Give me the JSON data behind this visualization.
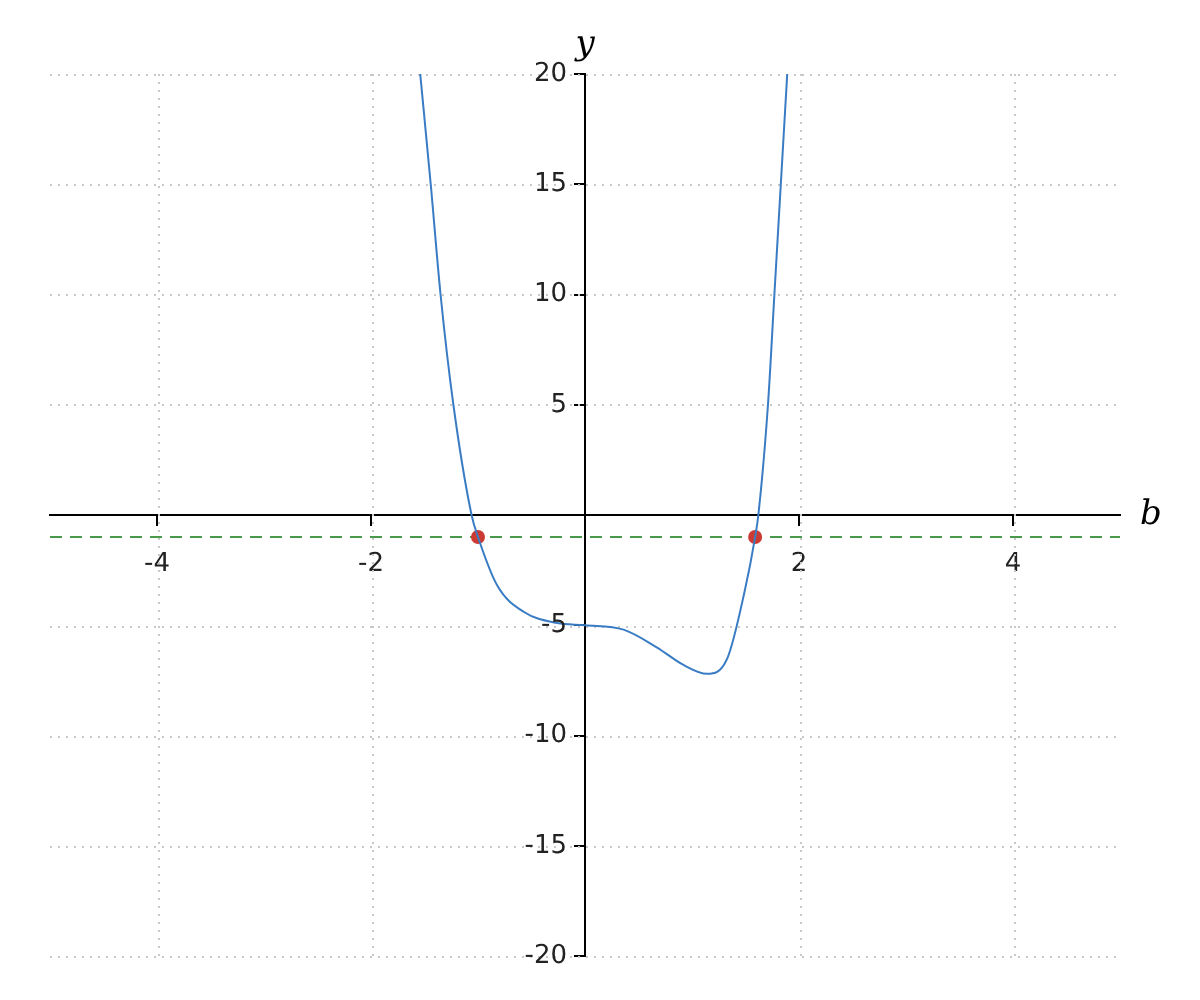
{
  "chart_data": {
    "type": "line",
    "xlabel": "b",
    "ylabel": "y",
    "xlim": [
      -5,
      5
    ],
    "ylim": [
      -20,
      20
    ],
    "xticks": [
      -4,
      -2,
      2,
      4
    ],
    "yticks": [
      -20,
      -15,
      -10,
      -5,
      5,
      10,
      15,
      20
    ],
    "grid": true,
    "legend": false,
    "series": [
      {
        "type": "line",
        "color": "#3a7cc4",
        "marker": "none",
        "x": [
          -1.54,
          -1.44,
          -1.35,
          -1.23,
          -1.06,
          -1.0,
          -0.82,
          -0.57,
          -0.26,
          0,
          0.36,
          0.67,
          0.92,
          1.14,
          1.33,
          1.49,
          1.59,
          1.62,
          1.71,
          1.77,
          1.83,
          1.89
        ],
        "values": [
          20,
          14.9,
          10,
          5,
          0,
          -1,
          -3.2,
          -4.4,
          -4.9,
          -5,
          -5.2,
          -6.0,
          -6.8,
          -7.2,
          -6.5,
          -3.5,
          -1,
          0,
          5,
          10,
          15,
          20
        ]
      },
      {
        "type": "scatter",
        "color": "#cc3b33",
        "marker": "circle",
        "x": [
          -1.0,
          1.59
        ],
        "values": [
          -1,
          -1
        ]
      }
    ],
    "ref_lines": [
      {
        "axis": "y",
        "value": -1,
        "color": "#4a9a4a",
        "line_style": "dashed"
      }
    ]
  }
}
